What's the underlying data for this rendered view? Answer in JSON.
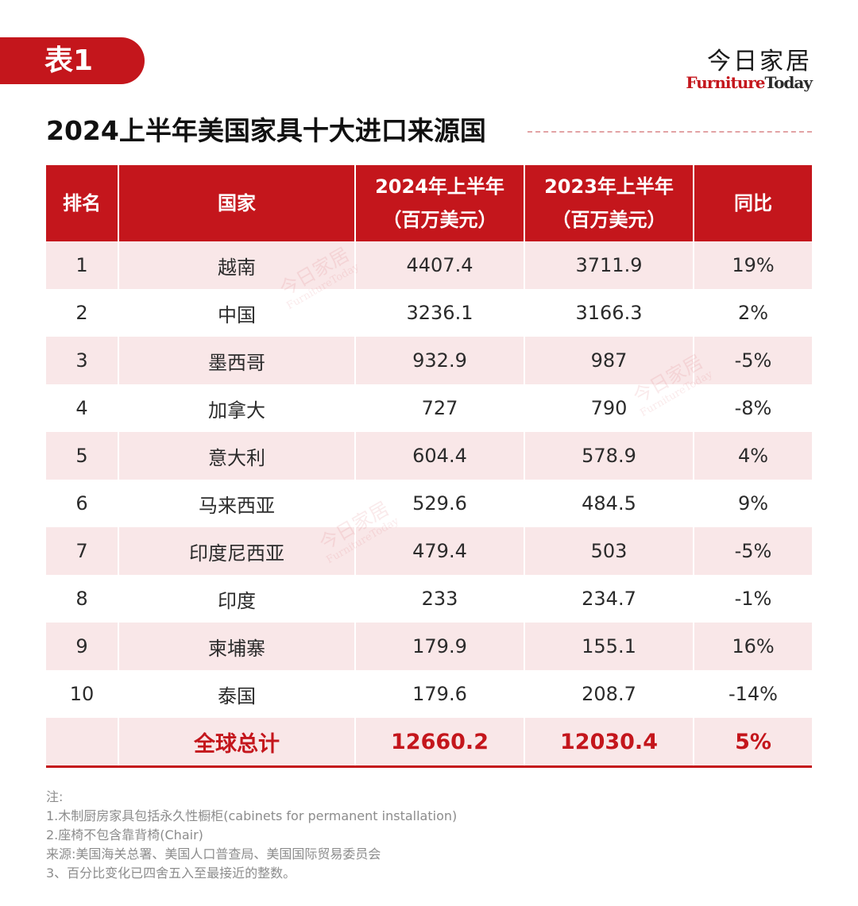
{
  "tag": "表1",
  "brand": {
    "cn": "今日家居",
    "en_part1": "Furniture",
    "en_part2": "Today"
  },
  "title": "2024上半年美国家具十大进口来源国",
  "table": {
    "headers": {
      "rank": "排名",
      "country": "国家",
      "h2024_line1": "2024年上半年",
      "h2024_line2": "（百万美元）",
      "h2023_line1": "2023年上半年",
      "h2023_line2": "（百万美元）",
      "yoy": "同比"
    },
    "rows": [
      {
        "rank": "1",
        "country": "越南",
        "v2024": "4407.4",
        "v2023": "3711.9",
        "yoy": "19%"
      },
      {
        "rank": "2",
        "country": "中国",
        "v2024": "3236.1",
        "v2023": "3166.3",
        "yoy": "2%"
      },
      {
        "rank": "3",
        "country": "墨西哥",
        "v2024": "932.9",
        "v2023": "987",
        "yoy": "-5%"
      },
      {
        "rank": "4",
        "country": "加拿大",
        "v2024": "727",
        "v2023": "790",
        "yoy": "-8%"
      },
      {
        "rank": "5",
        "country": "意大利",
        "v2024": "604.4",
        "v2023": "578.9",
        "yoy": "4%"
      },
      {
        "rank": "6",
        "country": "马来西亚",
        "v2024": "529.6",
        "v2023": "484.5",
        "yoy": "9%"
      },
      {
        "rank": "7",
        "country": "印度尼西亚",
        "v2024": "479.4",
        "v2023": "503",
        "yoy": "-5%"
      },
      {
        "rank": "8",
        "country": "印度",
        "v2024": "233",
        "v2023": "234.7",
        "yoy": "-1%"
      },
      {
        "rank": "9",
        "country": "柬埔寨",
        "v2024": "179.9",
        "v2023": "155.1",
        "yoy": "16%"
      },
      {
        "rank": "10",
        "country": "泰国",
        "v2024": "179.6",
        "v2023": "208.7",
        "yoy": "-14%"
      }
    ],
    "total": {
      "label": "全球总计",
      "v2024": "12660.2",
      "v2023": "12030.4",
      "yoy": "5%"
    }
  },
  "notes": [
    "注:",
    "1.木制厨房家具包括永久性橱柜(cabinets for permanent installation)",
    "2.座椅不包含靠背椅(Chair)",
    "来源:美国海关总署、美国人口普查局、美国国际贸易委员会",
    "3、百分比变化已四舍五入至最接近的整数。"
  ],
  "colors": {
    "accent": "#c4161c",
    "stripe": "#f9e7e8",
    "note": "#8c8c8c"
  }
}
